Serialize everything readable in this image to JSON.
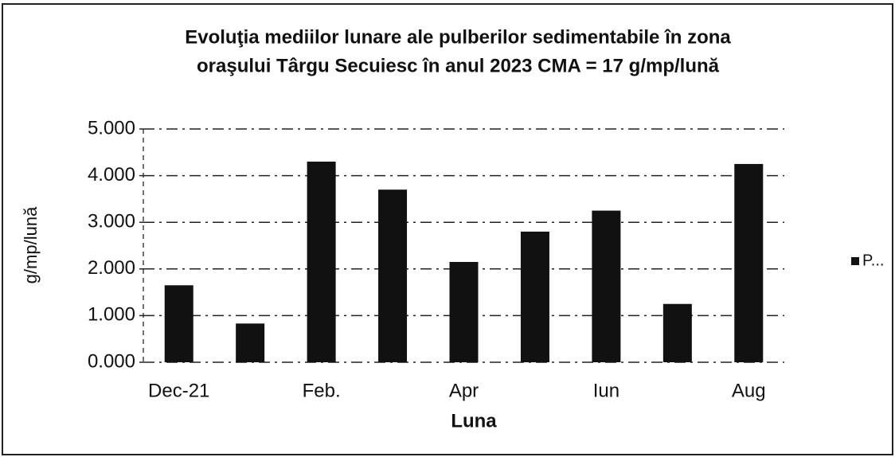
{
  "chart_data": {
    "type": "bar",
    "title": [
      "Evoluţia mediilor lunare ale pulberilor sedimentabile în zona",
      "oraşului Târgu Secuiesc în anul 2023    CMA = 17 g/mp/lună"
    ],
    "x_label": "Luna",
    "y_label": "g/mp/lună",
    "categories": [
      "Dec-21",
      null,
      "Feb.",
      null,
      "Apr",
      null,
      "Iun",
      null,
      "Aug"
    ],
    "series": [
      {
        "name": "P...",
        "color": "#111111",
        "values": [
          1.65,
          0.83,
          4.3,
          3.7,
          2.15,
          2.8,
          3.25,
          1.25,
          4.25
        ]
      }
    ],
    "ylim": [
      0,
      5
    ],
    "yticks": [
      {
        "value": 0,
        "label": "0.000"
      },
      {
        "value": 1,
        "label": "1.000"
      },
      {
        "value": 2,
        "label": "2.000"
      },
      {
        "value": 3,
        "label": "3.000"
      },
      {
        "value": 4,
        "label": "4.000"
      },
      {
        "value": 5,
        "label": "5.000"
      }
    ],
    "grid": true,
    "legend": "right"
  }
}
